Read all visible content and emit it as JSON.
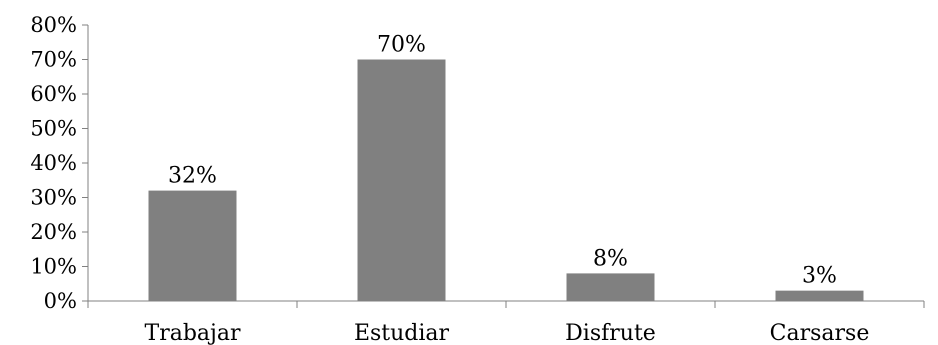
{
  "chart_data": {
    "type": "bar",
    "categories": [
      "Trabajar",
      "Estudiar",
      "Disfrute",
      "Carsarse"
    ],
    "values": [
      32,
      70,
      8,
      3
    ],
    "data_labels": [
      "32%",
      "70%",
      "8%",
      "3%"
    ],
    "title": "",
    "xlabel": "",
    "ylabel": "",
    "ylim": [
      0,
      80
    ],
    "yticks": [
      0,
      10,
      20,
      30,
      40,
      50,
      60,
      70,
      80
    ],
    "ytick_labels": [
      "0%",
      "10%",
      "20%",
      "30%",
      "40%",
      "50%",
      "60%",
      "70%",
      "80%"
    ],
    "grid": false,
    "legend": "none",
    "bar_color": "#808080",
    "axis_color": "#808080"
  }
}
